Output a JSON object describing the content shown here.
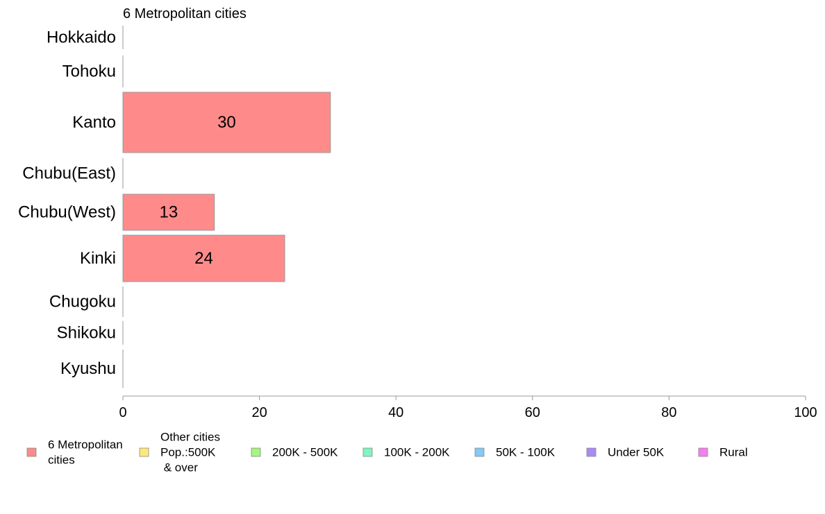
{
  "chart_data": {
    "type": "bar",
    "orientation": "horizontal",
    "title": "6 Metropolitan cities",
    "categories": [
      "Hokkaido",
      "Tohoku",
      "Kanto",
      "Chubu(East)",
      "Chubu(West)",
      "Kinki",
      "Chugoku",
      "Shikoku",
      "Kyushu"
    ],
    "series": [
      {
        "name": "6 Metropolitan\ncities",
        "color": "#ff8a8a",
        "values": [
          0,
          0,
          30.4,
          0,
          13.4,
          23.7,
          0,
          0,
          0
        ],
        "labels": [
          "",
          "",
          "30",
          "",
          "13",
          "24",
          "",
          "",
          ""
        ]
      }
    ],
    "xlim": [
      0,
      100
    ],
    "xticks": [
      "0",
      "20",
      "40",
      "60",
      "80",
      "100"
    ],
    "legend": {
      "placement": "bottom",
      "entries": [
        {
          "label": "6 Metropolitan\ncities",
          "color": "#ff8a8a"
        },
        {
          "label": "Other cities\nPop.:500K\n & over",
          "color": "#ffe87a"
        },
        {
          "label": "200K - 500K",
          "color": "#a4f77a"
        },
        {
          "label": "100K - 200K",
          "color": "#7ef5c4"
        },
        {
          "label": "50K - 100K",
          "color": "#86c8f7"
        },
        {
          "label": "Under 50K",
          "color": "#a98af7"
        },
        {
          "label": "Rural",
          "color": "#f57ef0"
        }
      ]
    },
    "grid": false
  }
}
